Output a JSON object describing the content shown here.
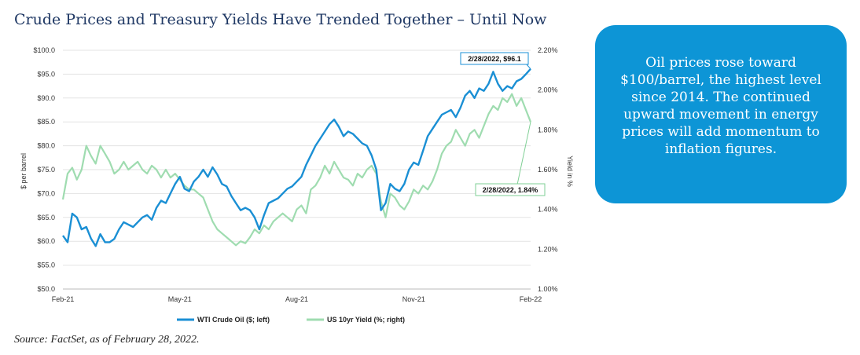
{
  "title": "Crude Prices and Treasury Yields Have Trended Together – Until Now",
  "callout": "Oil prices rose toward $100/barrel, the highest level since 2014. The continued upward movement in energy prices will add momentum to inflation figures.",
  "source": "Source: FactSet, as of February 28, 2022.",
  "chart_data": {
    "type": "line",
    "x_ticks": [
      "Feb-21",
      "May-21",
      "Aug-21",
      "Nov-21",
      "Feb-22"
    ],
    "ylabel_left": "$ per barrel",
    "ylabel_right": "Yield in %",
    "ylim_left": [
      50,
      100
    ],
    "ylim_right": [
      1.0,
      2.2
    ],
    "left_ticks": [
      "$50.0",
      "$55.0",
      "$60.0",
      "$65.0",
      "$70.0",
      "$75.0",
      "$80.0",
      "$85.0",
      "$90.0",
      "$95.0",
      "$100.0"
    ],
    "right_ticks": [
      "1.00%",
      "1.20%",
      "1.40%",
      "1.60%",
      "1.80%",
      "2.00%",
      "2.20%"
    ],
    "grid": true,
    "legend_position": "bottom",
    "series": [
      {
        "name": "WTI Crude Oil ($; left)",
        "axis": "left",
        "color": "#1a8fd4",
        "x": [
          0,
          0.01,
          0.02,
          0.03,
          0.04,
          0.05,
          0.06,
          0.07,
          0.08,
          0.09,
          0.1,
          0.11,
          0.12,
          0.13,
          0.14,
          0.15,
          0.16,
          0.17,
          0.18,
          0.19,
          0.2,
          0.21,
          0.22,
          0.23,
          0.24,
          0.25,
          0.26,
          0.27,
          0.28,
          0.29,
          0.3,
          0.31,
          0.32,
          0.33,
          0.34,
          0.35,
          0.36,
          0.37,
          0.38,
          0.39,
          0.4,
          0.41,
          0.42,
          0.43,
          0.44,
          0.45,
          0.46,
          0.47,
          0.48,
          0.49,
          0.5,
          0.51,
          0.52,
          0.53,
          0.54,
          0.55,
          0.56,
          0.57,
          0.58,
          0.59,
          0.6,
          0.61,
          0.62,
          0.63,
          0.64,
          0.65,
          0.66,
          0.67,
          0.68,
          0.69,
          0.7,
          0.71,
          0.72,
          0.73,
          0.74,
          0.75,
          0.76,
          0.77,
          0.78,
          0.79,
          0.8,
          0.81,
          0.82,
          0.83,
          0.84,
          0.85,
          0.86,
          0.87,
          0.88,
          0.89,
          0.9,
          0.91,
          0.92,
          0.93,
          0.94,
          0.95,
          0.96,
          0.97,
          0.98,
          0.99,
          1.0
        ],
        "values": [
          61.2,
          59.8,
          65.8,
          65.0,
          62.5,
          63.0,
          60.6,
          59.0,
          61.5,
          59.8,
          59.8,
          60.5,
          62.5,
          64.0,
          63.5,
          63.0,
          64.0,
          65.0,
          65.5,
          64.5,
          67.0,
          68.5,
          68.0,
          70.0,
          72.0,
          73.5,
          71.0,
          70.5,
          72.5,
          73.5,
          75.0,
          73.5,
          75.5,
          74.0,
          72.0,
          71.5,
          69.5,
          68.0,
          66.5,
          67.0,
          66.5,
          65.0,
          62.5,
          65.5,
          68.0,
          68.5,
          69.0,
          70.0,
          71.0,
          71.5,
          72.5,
          73.5,
          76.0,
          78.0,
          80.0,
          81.5,
          83.0,
          84.5,
          85.5,
          84.0,
          82.0,
          83.0,
          82.5,
          81.5,
          80.5,
          80.0,
          78.0,
          75.0,
          66.5,
          68.0,
          72.0,
          71.0,
          70.5,
          72.0,
          75.0,
          76.5,
          76.0,
          79.0,
          82.0,
          83.5,
          85.0,
          86.5,
          87.0,
          87.5,
          86.0,
          88.0,
          90.5,
          91.5,
          90.0,
          92.0,
          91.5,
          93.0,
          95.5,
          93.0,
          91.5,
          92.5,
          92.0,
          93.5,
          94.0,
          95.0,
          96.1
        ]
      },
      {
        "name": "US 10yr Yield (%; right)",
        "axis": "right",
        "color": "#9fdcb0",
        "x": [
          0,
          0.01,
          0.02,
          0.03,
          0.04,
          0.05,
          0.06,
          0.07,
          0.08,
          0.09,
          0.1,
          0.11,
          0.12,
          0.13,
          0.14,
          0.15,
          0.16,
          0.17,
          0.18,
          0.19,
          0.2,
          0.21,
          0.22,
          0.23,
          0.24,
          0.25,
          0.26,
          0.27,
          0.28,
          0.29,
          0.3,
          0.31,
          0.32,
          0.33,
          0.34,
          0.35,
          0.36,
          0.37,
          0.38,
          0.39,
          0.4,
          0.41,
          0.42,
          0.43,
          0.44,
          0.45,
          0.46,
          0.47,
          0.48,
          0.49,
          0.5,
          0.51,
          0.52,
          0.53,
          0.54,
          0.55,
          0.56,
          0.57,
          0.58,
          0.59,
          0.6,
          0.61,
          0.62,
          0.63,
          0.64,
          0.65,
          0.66,
          0.67,
          0.68,
          0.69,
          0.7,
          0.71,
          0.72,
          0.73,
          0.74,
          0.75,
          0.76,
          0.77,
          0.78,
          0.79,
          0.8,
          0.81,
          0.82,
          0.83,
          0.84,
          0.85,
          0.86,
          0.87,
          0.88,
          0.89,
          0.9,
          0.91,
          0.92,
          0.93,
          0.94,
          0.95,
          0.96,
          0.97,
          0.98,
          0.99,
          1.0
        ],
        "values": [
          1.45,
          1.58,
          1.61,
          1.55,
          1.6,
          1.72,
          1.67,
          1.63,
          1.72,
          1.68,
          1.64,
          1.58,
          1.6,
          1.64,
          1.6,
          1.62,
          1.64,
          1.6,
          1.58,
          1.62,
          1.6,
          1.56,
          1.6,
          1.56,
          1.58,
          1.55,
          1.52,
          1.5,
          1.5,
          1.48,
          1.46,
          1.4,
          1.34,
          1.3,
          1.28,
          1.26,
          1.24,
          1.22,
          1.24,
          1.23,
          1.26,
          1.3,
          1.28,
          1.32,
          1.3,
          1.34,
          1.36,
          1.38,
          1.36,
          1.34,
          1.4,
          1.42,
          1.38,
          1.5,
          1.52,
          1.56,
          1.62,
          1.58,
          1.64,
          1.6,
          1.56,
          1.55,
          1.52,
          1.58,
          1.56,
          1.6,
          1.62,
          1.58,
          1.44,
          1.36,
          1.48,
          1.46,
          1.42,
          1.4,
          1.44,
          1.5,
          1.48,
          1.52,
          1.5,
          1.54,
          1.6,
          1.68,
          1.72,
          1.74,
          1.8,
          1.76,
          1.72,
          1.78,
          1.8,
          1.76,
          1.82,
          1.88,
          1.92,
          1.9,
          1.96,
          1.94,
          1.98,
          1.92,
          1.96,
          1.9,
          1.84
        ]
      }
    ],
    "annotations": [
      {
        "label": "2/28/2022, $96.1",
        "series": 0
      },
      {
        "label": "2/28/2022, 1.84%",
        "series": 1
      }
    ]
  }
}
